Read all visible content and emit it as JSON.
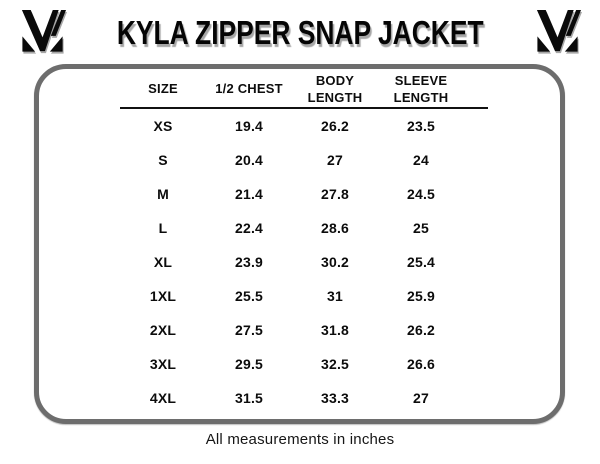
{
  "header": {
    "title": "KYLA ZIPPER SNAP JACKET",
    "left_logo_icon": "brand-m-monogram",
    "right_logo_icon": "brand-m-monogram"
  },
  "chart_data": {
    "type": "table",
    "title": "KYLA ZIPPER SNAP JACKET",
    "columns": [
      "SIZE",
      "1/2 CHEST",
      "BODY LENGTH",
      "SLEEVE LENGTH"
    ],
    "rows": [
      [
        "XS",
        "19.4",
        "26.2",
        "23.5"
      ],
      [
        "S",
        "20.4",
        "27",
        "24"
      ],
      [
        "M",
        "21.4",
        "27.8",
        "24.5"
      ],
      [
        "L",
        "22.4",
        "28.6",
        "25"
      ],
      [
        "XL",
        "23.9",
        "30.2",
        "25.4"
      ],
      [
        "1XL",
        "25.5",
        "31",
        "25.9"
      ],
      [
        "2XL",
        "27.5",
        "31.8",
        "26.2"
      ],
      [
        "3XL",
        "29.5",
        "32.5",
        "26.6"
      ],
      [
        "4XL",
        "31.5",
        "33.3",
        "27"
      ]
    ],
    "units": "inches",
    "legend_position": "none",
    "grid": "header-underline-only"
  },
  "footer": {
    "note": "All measurements in inches"
  },
  "colors": {
    "background": "#ffffff",
    "text": "#0d0d0d",
    "box_border": "#6d6d6d",
    "header_underline": "#111111",
    "title_shadow": "#a6a6a6"
  }
}
